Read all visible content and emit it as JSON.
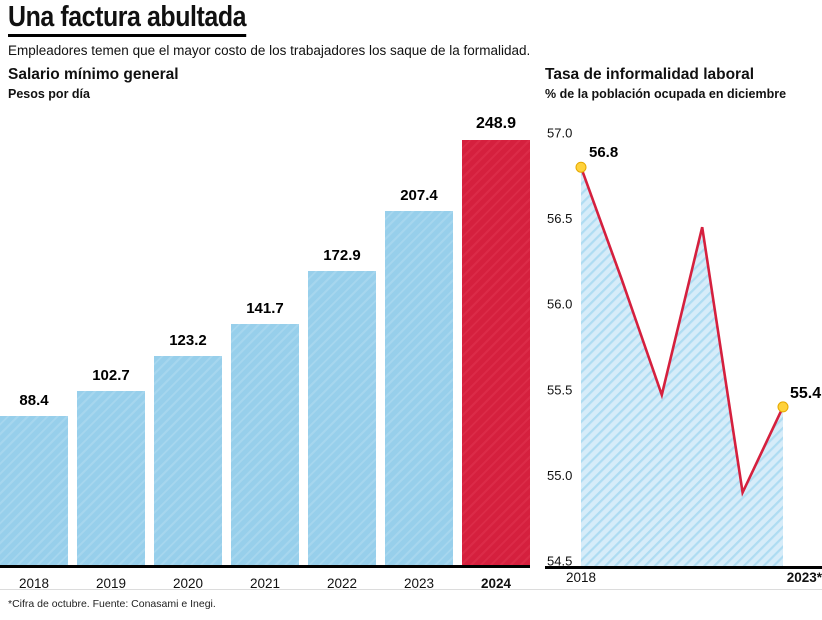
{
  "header": {
    "title": "Una factura abultada",
    "subtitle": "Empleadores temen que el mayor costo de los trabajadores los saque de la formalidad."
  },
  "footer": {
    "note": "*Cifra de octubre. Fuente: Conasami e Inegi."
  },
  "colors": {
    "bar": "#97cfeb",
    "bar_stripe": "#a6d6ee",
    "bar_highlight": "#d5203e",
    "bar_highlight_stripe": "#db2b48",
    "line": "#d5203e",
    "area_base": "#d6ecf9",
    "area_stripe": "#aedcf2",
    "dot": "#ffd23b",
    "dot_stroke": "#e5a900",
    "axis": "#000000"
  },
  "chart_data": [
    {
      "type": "bar",
      "title": "Salario mínimo general",
      "subtitle": "Pesos por día",
      "categories": [
        "2018",
        "2019",
        "2020",
        "2021",
        "2022",
        "2023",
        "2024"
      ],
      "values": [
        88.4,
        102.7,
        123.2,
        141.7,
        172.9,
        207.4,
        248.9
      ],
      "highlight_category": "2024",
      "ylim": [
        0,
        260
      ],
      "grid": false,
      "legend": "none"
    },
    {
      "type": "line",
      "title": "Tasa de informalidad laboral",
      "subtitle": "% de la población ocupada en diciembre",
      "x": [
        2018,
        2019,
        2020,
        2021,
        2022,
        2023
      ],
      "values": [
        56.8,
        56.15,
        55.47,
        56.45,
        54.9,
        55.4
      ],
      "labeled_points": {
        "first": "56.8",
        "last": "55.4"
      },
      "yticks": [
        54.5,
        55.0,
        55.5,
        56.0,
        56.5,
        57.0
      ],
      "ylim": [
        54.5,
        57.0
      ],
      "x_axis_labels": [
        "2018",
        "2023*"
      ],
      "grid": false,
      "legend": "none",
      "area_fill": "hatched"
    }
  ]
}
